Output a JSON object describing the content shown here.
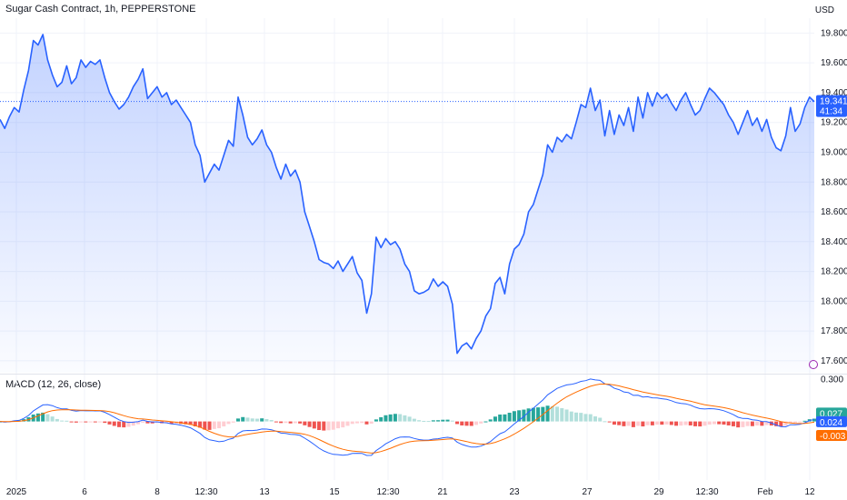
{
  "header": {
    "title": "Sugar Cash Contract, 1h, PEPPERSTONE",
    "currency": "USD"
  },
  "indicator": {
    "label": "MACD (12, 26, close)"
  },
  "colors": {
    "price_line": "#2962ff",
    "price_fill_top": "#2962ff",
    "macd_line": "#2962ff",
    "signal_line": "#ff6d00",
    "hist_pos_strong": "#26a69a",
    "hist_pos_weak": "#b2dfdb",
    "hist_neg_strong": "#ef5350",
    "hist_neg_weak": "#ffcdd2",
    "grid": "#f0f3fa",
    "text": "#131722"
  },
  "tags": {
    "last_price": "19.341",
    "countdown": "41:34",
    "macd": "0.027",
    "macd_value": "0.024",
    "signal_value": "-0.003"
  },
  "chart_data": [
    {
      "type": "line",
      "name": "price",
      "y_ticks": [
        "19.800",
        "19.600",
        "19.400",
        "19.200",
        "19.000",
        "18.800",
        "18.600",
        "18.400",
        "18.200",
        "18.000",
        "17.800",
        "17.600"
      ],
      "ylim": [
        17.52,
        19.9
      ],
      "last_value": 19.341,
      "x_ticks": [
        "2025",
        "6",
        "8",
        "12:30",
        "13",
        "15",
        "12:30",
        "21",
        "23",
        "27",
        "29",
        "12:30",
        "Feb",
        "12"
      ],
      "values": [
        19.22,
        19.16,
        19.24,
        19.3,
        19.27,
        19.42,
        19.55,
        19.75,
        19.72,
        19.79,
        19.62,
        19.52,
        19.44,
        19.47,
        19.58,
        19.46,
        19.5,
        19.62,
        19.57,
        19.61,
        19.59,
        19.62,
        19.5,
        19.4,
        19.34,
        19.29,
        19.32,
        19.37,
        19.44,
        19.49,
        19.56,
        19.36,
        19.4,
        19.44,
        19.37,
        19.4,
        19.32,
        19.35,
        19.3,
        19.25,
        19.2,
        19.05,
        18.98,
        18.8,
        18.86,
        18.92,
        18.88,
        18.98,
        19.08,
        19.04,
        19.37,
        19.25,
        19.1,
        19.05,
        19.09,
        19.15,
        19.05,
        19.0,
        18.9,
        18.82,
        18.92,
        18.84,
        18.88,
        18.8,
        18.6,
        18.5,
        18.4,
        18.28,
        18.26,
        18.25,
        18.22,
        18.27,
        18.2,
        18.25,
        18.3,
        18.19,
        18.14,
        17.92,
        18.05,
        18.43,
        18.36,
        18.42,
        18.38,
        18.4,
        18.35,
        18.25,
        18.2,
        18.07,
        18.05,
        18.06,
        18.08,
        18.15,
        18.1,
        18.13,
        18.1,
        17.98,
        17.65,
        17.7,
        17.72,
        17.68,
        17.75,
        17.8,
        17.9,
        17.95,
        18.12,
        18.16,
        18.05,
        18.25,
        18.35,
        18.38,
        18.45,
        18.6,
        18.65,
        18.75,
        18.85,
        19.05,
        19.0,
        19.1,
        19.07,
        19.12,
        19.09,
        19.2,
        19.32,
        19.3,
        19.43,
        19.28,
        19.35,
        19.11,
        19.28,
        19.12,
        19.25,
        19.18,
        19.3,
        19.14,
        19.37,
        19.23,
        19.4,
        19.31,
        19.4,
        19.36,
        19.39,
        19.33,
        19.28,
        19.35,
        19.4,
        19.32,
        19.25,
        19.28,
        19.36,
        19.43,
        19.4,
        19.36,
        19.32,
        19.25,
        19.2,
        19.12,
        19.2,
        19.28,
        19.18,
        19.23,
        19.14,
        19.22,
        19.1,
        19.03,
        19.01,
        19.11,
        19.3,
        19.14,
        19.19,
        19.3,
        19.37,
        19.34
      ]
    },
    {
      "type": "bar",
      "name": "MACD (12, 26, close)",
      "y_ticks": [
        "0.300"
      ],
      "ylim": [
        -0.42,
        0.33
      ],
      "last_values": {
        "histogram": 0.027,
        "macd": 0.024,
        "signal": -0.003
      }
    }
  ]
}
